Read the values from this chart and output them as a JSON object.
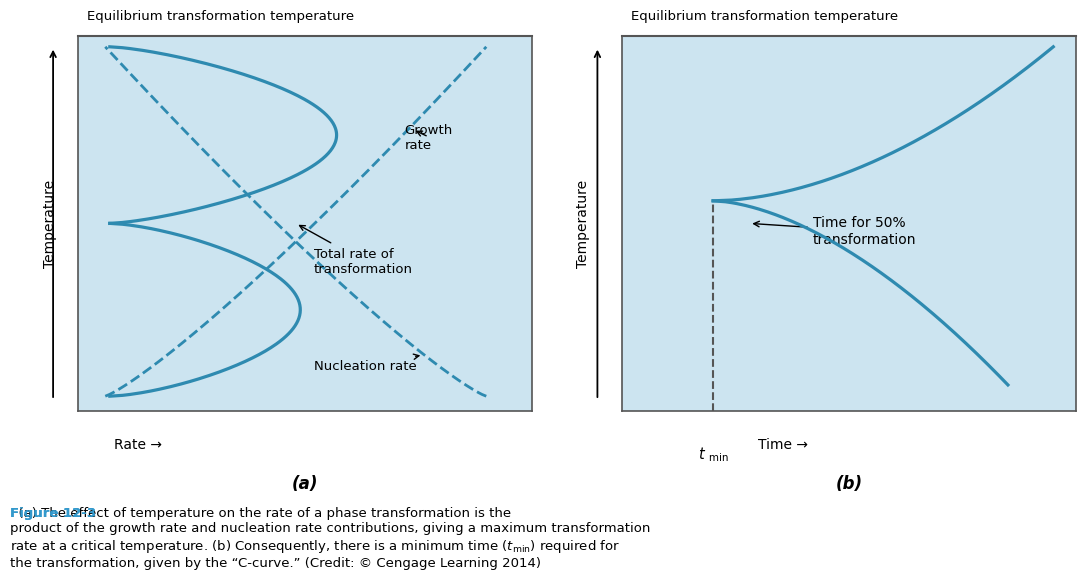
{
  "background_color": "#cce4f0",
  "line_color": "#2e8ab0",
  "dashed_color": "#2e8ab0",
  "equilibrium_label": "Equilibrium transformation temperature",
  "ylabel": "Temperature",
  "xlabel_a": "Rate →",
  "xlabel_b": "Time →",
  "label_a": "(a)",
  "label_b": "(b)",
  "growth_rate_label": "Growth\nrate",
  "total_rate_label": "Total rate of\ntransformation",
  "nucleation_rate_label": "Nucleation rate",
  "time_50_label": "Time for 50%\ntransformation",
  "caption_blue": "#3399cc",
  "caption_text": "  (a) The effect of temperature on the rate of a phase transformation is the\nproduct of the growth rate and nucleation rate contributions, giving a maximum transformation\nrate at a critical temperature. (b) Consequently, there is a minimum time (’t_min’) required for\nthe transformation, given by the “C-curve.” (Credit: © Cengage Learning 2014)"
}
